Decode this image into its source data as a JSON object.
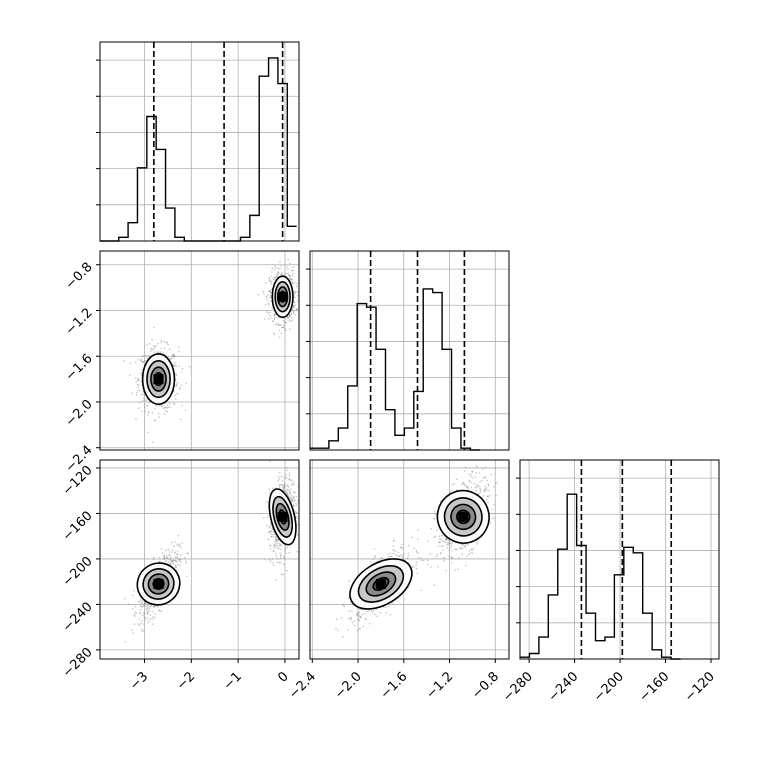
{
  "chart_data": {
    "type": "corner",
    "colors": {
      "line": "#000000",
      "grid": "#b0b0b0",
      "quantile": "#000000",
      "points": "#808080"
    },
    "variables": [
      {
        "range": [
          -3.95,
          0.3
        ],
        "ticks": [
          -3,
          -2,
          -1,
          0
        ],
        "tick_labels": [
          "−3",
          "−2",
          "−1",
          "0"
        ],
        "quantiles": [
          -2.8,
          -1.3,
          -0.05
        ]
      },
      {
        "range": [
          -2.42,
          -0.68
        ],
        "ticks": [
          -2.4,
          -2.0,
          -1.6,
          -1.2,
          -0.8
        ],
        "tick_labels": [
          "−2.4",
          "−2.0",
          "−1.6",
          "−1.2",
          "−0.8"
        ],
        "quantiles": [
          -1.89,
          -1.48,
          -1.07
        ]
      },
      {
        "range": [
          -288,
          -113
        ],
        "ticks": [
          -280,
          -240,
          -200,
          -160,
          -120
        ],
        "tick_labels": [
          "−280",
          "−240",
          "−200",
          "−160",
          "−120"
        ],
        "quantiles": [
          -234,
          -198,
          -155
        ]
      }
    ],
    "histograms": [
      {
        "edges_start": -3.95,
        "bin_width": 0.2,
        "counts": [
          0,
          0,
          0.02,
          0.1,
          0.4,
          0.68,
          0.5,
          0.18,
          0.02,
          0,
          0,
          0,
          0,
          0,
          0,
          0.02,
          0.14,
          0.9,
          1.0,
          0.86,
          0.08
        ]
      },
      {
        "edges_start": -2.42,
        "bin_width": 0.0825,
        "counts": [
          0.01,
          0.01,
          0.05,
          0.12,
          0.35,
          0.8,
          0.78,
          0.55,
          0.22,
          0.08,
          0.12,
          0.32,
          0.88,
          0.86,
          0.55,
          0.12,
          0.01,
          0.0
        ]
      },
      {
        "edges_start": -288,
        "bin_width": 8.3,
        "counts": [
          0.01,
          0.03,
          0.12,
          0.35,
          0.6,
          0.9,
          0.62,
          0.25,
          0.1,
          0.12,
          0.46,
          0.61,
          0.58,
          0.25,
          0.05,
          0.01,
          0.0
        ]
      }
    ],
    "clusters": [
      {
        "pair": [
          0,
          1
        ],
        "cx": -2.7,
        "cy": -1.8,
        "sx": 0.17,
        "sy": 0.11,
        "r": 0.0
      },
      {
        "pair": [
          0,
          1
        ],
        "cx": -0.05,
        "cy": -1.08,
        "sx": 0.11,
        "sy": 0.09,
        "r": 0.0
      },
      {
        "pair": [
          0,
          2
        ],
        "cx": -2.7,
        "cy": -222,
        "sx": 0.17,
        "sy": 12,
        "r": 0.7
      },
      {
        "pair": [
          0,
          2
        ],
        "cx": -0.05,
        "cy": -163,
        "sx": 0.11,
        "sy": 14,
        "r": 0.3
      },
      {
        "pair": [
          1,
          2
        ],
        "cx": -1.8,
        "cy": -222,
        "sx": 0.11,
        "sy": 12,
        "r": 0.7
      },
      {
        "pair": [
          1,
          2
        ],
        "cx": -1.08,
        "cy": -163,
        "sx": 0.09,
        "sy": 14,
        "r": 0.5
      }
    ],
    "grid": true,
    "legend": "none"
  }
}
